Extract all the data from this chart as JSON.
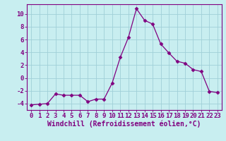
{
  "x": [
    0,
    1,
    2,
    3,
    4,
    5,
    6,
    7,
    8,
    9,
    10,
    11,
    12,
    13,
    14,
    15,
    16,
    17,
    18,
    19,
    20,
    21,
    22,
    23
  ],
  "y": [
    -4.2,
    -4.1,
    -4.0,
    -2.5,
    -2.7,
    -2.7,
    -2.7,
    -3.7,
    -3.3,
    -3.3,
    -0.8,
    3.2,
    6.3,
    10.8,
    9.0,
    8.4,
    5.3,
    3.9,
    2.6,
    2.3,
    1.3,
    1.0,
    -2.1,
    -2.3
  ],
  "line_color": "#800080",
  "marker": "D",
  "marker_size": 2.5,
  "bg_color": "#c8eef0",
  "grid_color": "#a0d0d8",
  "xlabel": "Windchill (Refroidissement éolien,°C)",
  "ylabel_ticks": [
    -4,
    -2,
    0,
    2,
    4,
    6,
    8,
    10
  ],
  "xlim": [
    -0.5,
    23.5
  ],
  "ylim": [
    -5,
    11.5
  ],
  "xlabel_fontsize": 7,
  "tick_fontsize": 6.5,
  "axis_color": "#800080"
}
